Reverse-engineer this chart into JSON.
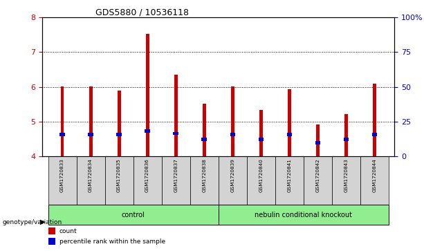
{
  "title": "GDS5880 / 10536118",
  "samples": [
    "GSM1720833",
    "GSM1720834",
    "GSM1720835",
    "GSM1720836",
    "GSM1720837",
    "GSM1720838",
    "GSM1720839",
    "GSM1720840",
    "GSM1720841",
    "GSM1720842",
    "GSM1720843",
    "GSM1720844"
  ],
  "bar_heights": [
    6.02,
    6.02,
    5.9,
    7.52,
    6.35,
    5.52,
    6.02,
    5.33,
    5.93,
    4.92,
    5.22,
    6.1
  ],
  "blue_positions": [
    4.62,
    4.62,
    4.62,
    4.72,
    4.65,
    4.48,
    4.62,
    4.48,
    4.62,
    4.38,
    4.48,
    4.62
  ],
  "bar_color": "#cc0000",
  "blue_color": "#0000cc",
  "bar_bottom": 4.0,
  "ylim_left": [
    4.0,
    8.0
  ],
  "ylim_right": [
    0,
    100
  ],
  "yticks_left": [
    4,
    5,
    6,
    7,
    8
  ],
  "yticks_right": [
    0,
    25,
    50,
    75,
    100
  ],
  "ytick_labels_right": [
    "0",
    "25",
    "50",
    "75",
    "100%"
  ],
  "group_label_prefix": "genotype/variation",
  "legend_items": [
    {
      "color": "#cc0000",
      "label": "count"
    },
    {
      "color": "#0000cc",
      "label": "percentile rank within the sample"
    }
  ],
  "tick_color_left": "#cc0000",
  "tick_color_right": "#0000cc",
  "bar_width": 0.12,
  "bg_color": "#ffffff",
  "sample_box_color": "#d3d3d3",
  "group_box_color": "#90ee90"
}
